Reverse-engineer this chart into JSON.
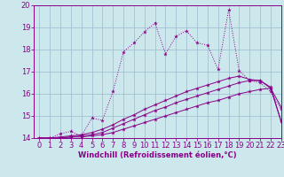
{
  "xlabel": "Windchill (Refroidissement éolien,°C)",
  "xlim": [
    -0.5,
    23
  ],
  "ylim": [
    14,
    20
  ],
  "xticks": [
    0,
    1,
    2,
    3,
    4,
    5,
    6,
    7,
    8,
    9,
    10,
    11,
    12,
    13,
    14,
    15,
    16,
    17,
    18,
    19,
    20,
    21,
    22,
    23
  ],
  "yticks": [
    14,
    15,
    16,
    17,
    18,
    19,
    20
  ],
  "bg_color": "#cce8ec",
  "line_color": "#880088",
  "grid_color": "#99bbcc",
  "line1_y": [
    14.0,
    14.0,
    14.2,
    14.3,
    14.1,
    14.9,
    14.8,
    16.1,
    17.9,
    18.3,
    18.8,
    19.2,
    17.8,
    18.6,
    18.85,
    18.3,
    18.2,
    17.1,
    19.8,
    17.05,
    16.6,
    16.5,
    16.1,
    15.3
  ],
  "line2_y": [
    14.0,
    14.0,
    14.0,
    14.05,
    14.05,
    14.1,
    14.15,
    14.25,
    14.4,
    14.55,
    14.7,
    14.85,
    15.0,
    15.15,
    15.3,
    15.45,
    15.6,
    15.7,
    15.85,
    16.0,
    16.1,
    16.2,
    16.25,
    14.75
  ],
  "line3_y": [
    14.0,
    14.0,
    14.0,
    14.05,
    14.1,
    14.15,
    14.25,
    14.45,
    14.65,
    14.85,
    15.05,
    15.25,
    15.4,
    15.6,
    15.75,
    15.9,
    16.05,
    16.2,
    16.35,
    16.5,
    16.6,
    16.6,
    16.25,
    15.4
  ],
  "line4_y": [
    14.0,
    14.0,
    14.05,
    14.1,
    14.15,
    14.25,
    14.4,
    14.6,
    14.85,
    15.05,
    15.3,
    15.5,
    15.7,
    15.9,
    16.1,
    16.25,
    16.4,
    16.55,
    16.7,
    16.8,
    16.65,
    16.6,
    16.3,
    14.75
  ],
  "tick_fontsize": 6,
  "xlabel_fontsize": 6
}
